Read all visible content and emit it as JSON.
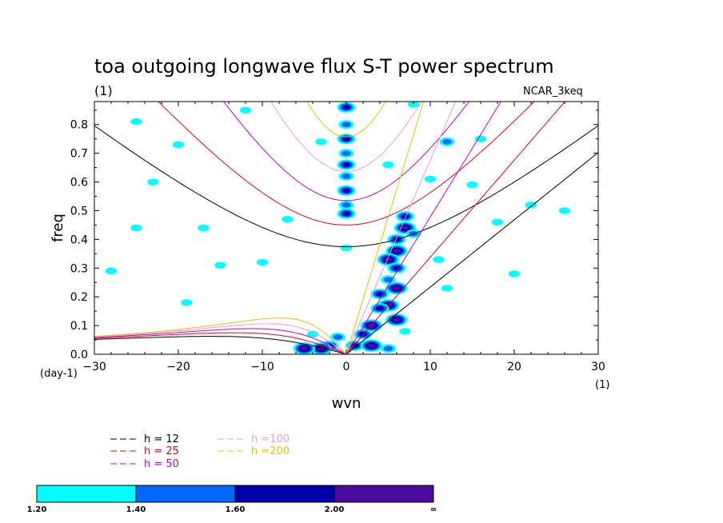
{
  "title": "toa outgoing longwave flux S-T power spectrum",
  "units_left": "(1)",
  "model_label": "NCAR_3keq",
  "y_units": "(day-1)",
  "x_units": "(1)",
  "legend": [
    {
      "label": "h = 12",
      "color": "#000000"
    },
    {
      "label": "h = 25",
      "color": "#e0001a"
    },
    {
      "label": "h = 50",
      "color": "#c000c0"
    },
    {
      "label": "h =100",
      "color": "#e79be7"
    },
    {
      "label": "h =200",
      "color": "#e8c000"
    }
  ],
  "colorbar": {
    "labels": [
      "1.20",
      "1.40",
      "1.60",
      "2.00",
      "∞"
    ],
    "colors": [
      "#00ffff",
      "#0066ff",
      "#0000aa",
      "#4b0a9e"
    ]
  },
  "chart_data": {
    "type": "heatmap",
    "title": "toa outgoing longwave flux S-T power spectrum",
    "xlabel": "wvn",
    "ylabel": "freq",
    "xlim": [
      -30,
      30
    ],
    "ylim": [
      0,
      0.88
    ],
    "x_ticks": [
      "-30",
      "-20",
      "-10",
      "0",
      "10",
      "20",
      "30"
    ],
    "y_ticks": [
      "0.0",
      "0.1",
      "0.2",
      "0.3",
      "0.4",
      "0.5",
      "0.6",
      "0.7",
      "0.8"
    ],
    "dispersion_curves": [
      {
        "name": "h = 12",
        "equivalent_depth_m": 12,
        "color": "#000000"
      },
      {
        "name": "h = 25",
        "equivalent_depth_m": 25,
        "color": "#e0001a"
      },
      {
        "name": "h = 50",
        "equivalent_depth_m": 50,
        "color": "#c000c0"
      },
      {
        "name": "h =100",
        "equivalent_depth_m": 100,
        "color": "#e79be7"
      },
      {
        "name": "h =200",
        "equivalent_depth_m": 200,
        "color": "#e8c000"
      }
    ],
    "contour_levels": [
      1.2,
      1.4,
      1.6,
      2.0
    ],
    "power_features": [
      {
        "k": 0,
        "f": 0.86,
        "level": 3
      },
      {
        "k": 0,
        "f": 0.8,
        "level": 2
      },
      {
        "k": 0,
        "f": 0.75,
        "level": 3
      },
      {
        "k": 0,
        "f": 0.7,
        "level": 2
      },
      {
        "k": 0,
        "f": 0.66,
        "level": 3
      },
      {
        "k": 0,
        "f": 0.62,
        "level": 2
      },
      {
        "k": 0,
        "f": 0.57,
        "level": 3
      },
      {
        "k": 0,
        "f": 0.52,
        "level": 2
      },
      {
        "k": 0,
        "f": 0.49,
        "level": 3
      },
      {
        "k": 0,
        "f": 0.37,
        "level": 1
      },
      {
        "k": 7,
        "f": 0.48,
        "level": 3
      },
      {
        "k": 7,
        "f": 0.44,
        "level": 4
      },
      {
        "k": 6,
        "f": 0.4,
        "level": 3
      },
      {
        "k": 8,
        "f": 0.42,
        "level": 2
      },
      {
        "k": 6,
        "f": 0.36,
        "level": 4
      },
      {
        "k": 5,
        "f": 0.33,
        "level": 4
      },
      {
        "k": 6,
        "f": 0.3,
        "level": 3
      },
      {
        "k": 5,
        "f": 0.26,
        "level": 2
      },
      {
        "k": 6,
        "f": 0.23,
        "level": 4
      },
      {
        "k": 4,
        "f": 0.21,
        "level": 3
      },
      {
        "k": 5,
        "f": 0.17,
        "level": 4
      },
      {
        "k": 4,
        "f": 0.16,
        "level": 3
      },
      {
        "k": 6,
        "f": 0.12,
        "level": 4
      },
      {
        "k": 3,
        "f": 0.1,
        "level": 4
      },
      {
        "k": 2,
        "f": 0.07,
        "level": 3
      },
      {
        "k": 1,
        "f": 0.03,
        "level": 3
      },
      {
        "k": 3,
        "f": 0.03,
        "level": 4
      },
      {
        "k": 5,
        "f": 0.02,
        "level": 2
      },
      {
        "k": -2,
        "f": 0.03,
        "level": 3
      },
      {
        "k": -3,
        "f": 0.02,
        "level": 4
      },
      {
        "k": -5,
        "f": 0.02,
        "level": 4
      },
      {
        "k": -1,
        "f": 0.06,
        "level": 2
      },
      {
        "k": 7,
        "f": 0.08,
        "level": 1
      },
      {
        "k": 12,
        "f": 0.74,
        "level": 2
      },
      {
        "k": 16,
        "f": 0.75,
        "level": 1
      },
      {
        "k": -25,
        "f": 0.81,
        "level": 1
      },
      {
        "k": -20,
        "f": 0.73,
        "level": 1
      },
      {
        "k": -17,
        "f": 0.44,
        "level": 1
      },
      {
        "k": -25,
        "f": 0.44,
        "level": 1
      },
      {
        "k": 15,
        "f": 0.59,
        "level": 1
      },
      {
        "k": 10,
        "f": 0.61,
        "level": 1
      },
      {
        "k": -12,
        "f": 0.85,
        "level": 1
      },
      {
        "k": 8,
        "f": 0.87,
        "level": 1
      },
      {
        "k": -28,
        "f": 0.29,
        "level": 1
      },
      {
        "k": -15,
        "f": 0.31,
        "level": 1
      },
      {
        "k": -7,
        "f": 0.47,
        "level": 1
      },
      {
        "k": 18,
        "f": 0.46,
        "level": 1
      },
      {
        "k": 22,
        "f": 0.52,
        "level": 1
      },
      {
        "k": 12,
        "f": 0.23,
        "level": 1
      },
      {
        "k": -23,
        "f": 0.6,
        "level": 1
      },
      {
        "k": -10,
        "f": 0.32,
        "level": 1
      },
      {
        "k": 11,
        "f": 0.33,
        "level": 1
      },
      {
        "k": -4,
        "f": 0.07,
        "level": 1
      },
      {
        "k": 20,
        "f": 0.28,
        "level": 1
      },
      {
        "k": -19,
        "f": 0.18,
        "level": 1
      },
      {
        "k": 26,
        "f": 0.5,
        "level": 1
      },
      {
        "k": -3,
        "f": 0.74,
        "level": 1
      },
      {
        "k": 5,
        "f": 0.66,
        "level": 1
      }
    ]
  }
}
